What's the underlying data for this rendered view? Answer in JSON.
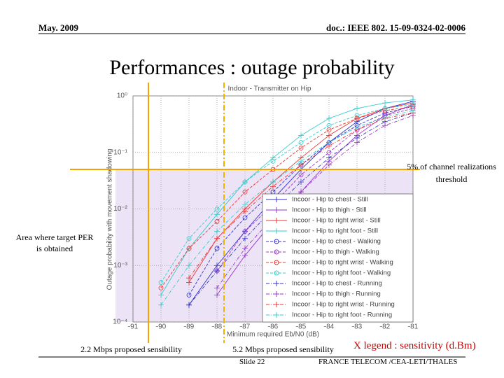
{
  "header": {
    "date": "May. 2009",
    "doc": "doc.: IEEE 802. 15-09-0324-02-0006"
  },
  "title": "Performances : outage probability",
  "footer": {
    "slide": "Slide 22",
    "authors": "FRANCE TELECOM /CEA-LETI/THALES"
  },
  "chart_data": {
    "type": "line",
    "title": "Indoor - Transmitter on Hip",
    "x_label": "Minimum required Eb/N0 (dB)",
    "y_label": "Outage probability with movement shadowing",
    "x": [
      -91,
      -90,
      -89,
      -88,
      -87,
      -86,
      -85,
      -84,
      -83,
      -82,
      -81
    ],
    "xlim": [
      -91,
      -81
    ],
    "xticks": [
      -91,
      -90,
      -89,
      -88,
      -87,
      -86,
      -85,
      -84,
      -83,
      -82,
      -81
    ],
    "ylim": [
      0.0001,
      1
    ],
    "log_y": true,
    "grid": true,
    "yticks": [
      {
        "value": 1,
        "label": "10⁰"
      },
      {
        "value": 0.1,
        "label": "10⁻¹"
      },
      {
        "value": 0.01,
        "label": "10⁻²"
      },
      {
        "value": 0.001,
        "label": "10⁻³"
      },
      {
        "value": 0.0001,
        "label": "10⁻⁴"
      }
    ],
    "legend": "lower right",
    "series": [
      {
        "name": "Incoor - Hip to chest - Still",
        "color": "#3333cc",
        "marker": "+",
        "dash": "solid",
        "values": [
          null,
          null,
          0.0002,
          0.001,
          0.004,
          0.015,
          0.05,
          0.15,
          0.35,
          0.6,
          0.8
        ]
      },
      {
        "name": "Incoor - Hip to thigh - Still",
        "color": "#9933cc",
        "marker": "+",
        "dash": "solid",
        "values": [
          null,
          null,
          null,
          0.0003,
          0.0015,
          0.006,
          0.02,
          0.07,
          0.2,
          0.45,
          0.7
        ]
      },
      {
        "name": "Incoor - Hip to right wrist - Still",
        "color": "#ee3333",
        "marker": "+",
        "dash": "solid",
        "values": [
          null,
          null,
          0.0005,
          0.003,
          0.01,
          0.03,
          0.08,
          0.2,
          0.4,
          0.6,
          0.75
        ]
      },
      {
        "name": "Incoor - Hip to right foot - Still",
        "color": "#33cccc",
        "marker": "+",
        "dash": "solid",
        "values": [
          null,
          0.0003,
          0.002,
          0.008,
          0.03,
          0.08,
          0.2,
          0.4,
          0.6,
          0.75,
          0.85
        ]
      },
      {
        "name": "Incoor - Hip to chest - Walking",
        "color": "#3333cc",
        "marker": "o",
        "dash": "dashed",
        "values": [
          null,
          null,
          0.0003,
          0.002,
          0.007,
          0.02,
          0.06,
          0.15,
          0.3,
          0.5,
          0.65
        ]
      },
      {
        "name": "Incoor - Hip to thigh - Walking",
        "color": "#9933cc",
        "marker": "o",
        "dash": "dashed",
        "values": [
          null,
          null,
          null,
          0.0008,
          0.004,
          0.012,
          0.04,
          0.1,
          0.25,
          0.45,
          0.6
        ]
      },
      {
        "name": "Incoor - Hip to right wrist - Walking",
        "color": "#ee3333",
        "marker": "o",
        "dash": "dashed",
        "values": [
          null,
          0.0004,
          0.002,
          0.006,
          0.02,
          0.05,
          0.12,
          0.25,
          0.4,
          0.55,
          0.65
        ]
      },
      {
        "name": "Incoor - Hip to right foot - Walking",
        "color": "#33cccc",
        "marker": "o",
        "dash": "dashed",
        "values": [
          null,
          0.0005,
          0.003,
          0.01,
          0.03,
          0.07,
          0.15,
          0.3,
          0.45,
          0.6,
          0.7
        ]
      },
      {
        "name": "Incoor - Hip to chest - Running",
        "color": "#3333cc",
        "marker": "+",
        "dash": "dashdot",
        "values": [
          null,
          null,
          0.0002,
          0.0008,
          0.003,
          0.01,
          0.03,
          0.08,
          0.18,
          0.35,
          0.5
        ]
      },
      {
        "name": "Incoor - Hip to thigh - Running",
        "color": "#9933cc",
        "marker": "+",
        "dash": "dashdot",
        "values": [
          null,
          null,
          null,
          0.0004,
          0.002,
          0.007,
          0.02,
          0.06,
          0.15,
          0.3,
          0.45
        ]
      },
      {
        "name": "Incoor - Hip to right wrist - Running",
        "color": "#ee3333",
        "marker": "+",
        "dash": "dashdot",
        "values": [
          null,
          null,
          0.0006,
          0.003,
          0.009,
          0.025,
          0.06,
          0.13,
          0.25,
          0.4,
          0.5
        ]
      },
      {
        "name": "Incoor - Hip to right foot - Running",
        "color": "#33cccc",
        "marker": "+",
        "dash": "dashdot",
        "values": [
          null,
          0.0002,
          0.001,
          0.004,
          0.012,
          0.03,
          0.07,
          0.15,
          0.28,
          0.42,
          0.55
        ]
      }
    ],
    "threshold": {
      "value": 0.05,
      "label": "5% of channel realizations threshold"
    },
    "region_label": "Area where target PER is obtained",
    "sensitivities": [
      {
        "x": -90.45,
        "label": "2.2 Mbps proposed sensibility"
      },
      {
        "x": -87.75,
        "label": "5.2 Mbps proposed sensibility"
      }
    ],
    "x_legend_note": "X legend : sensitivity (d.Bm)"
  }
}
